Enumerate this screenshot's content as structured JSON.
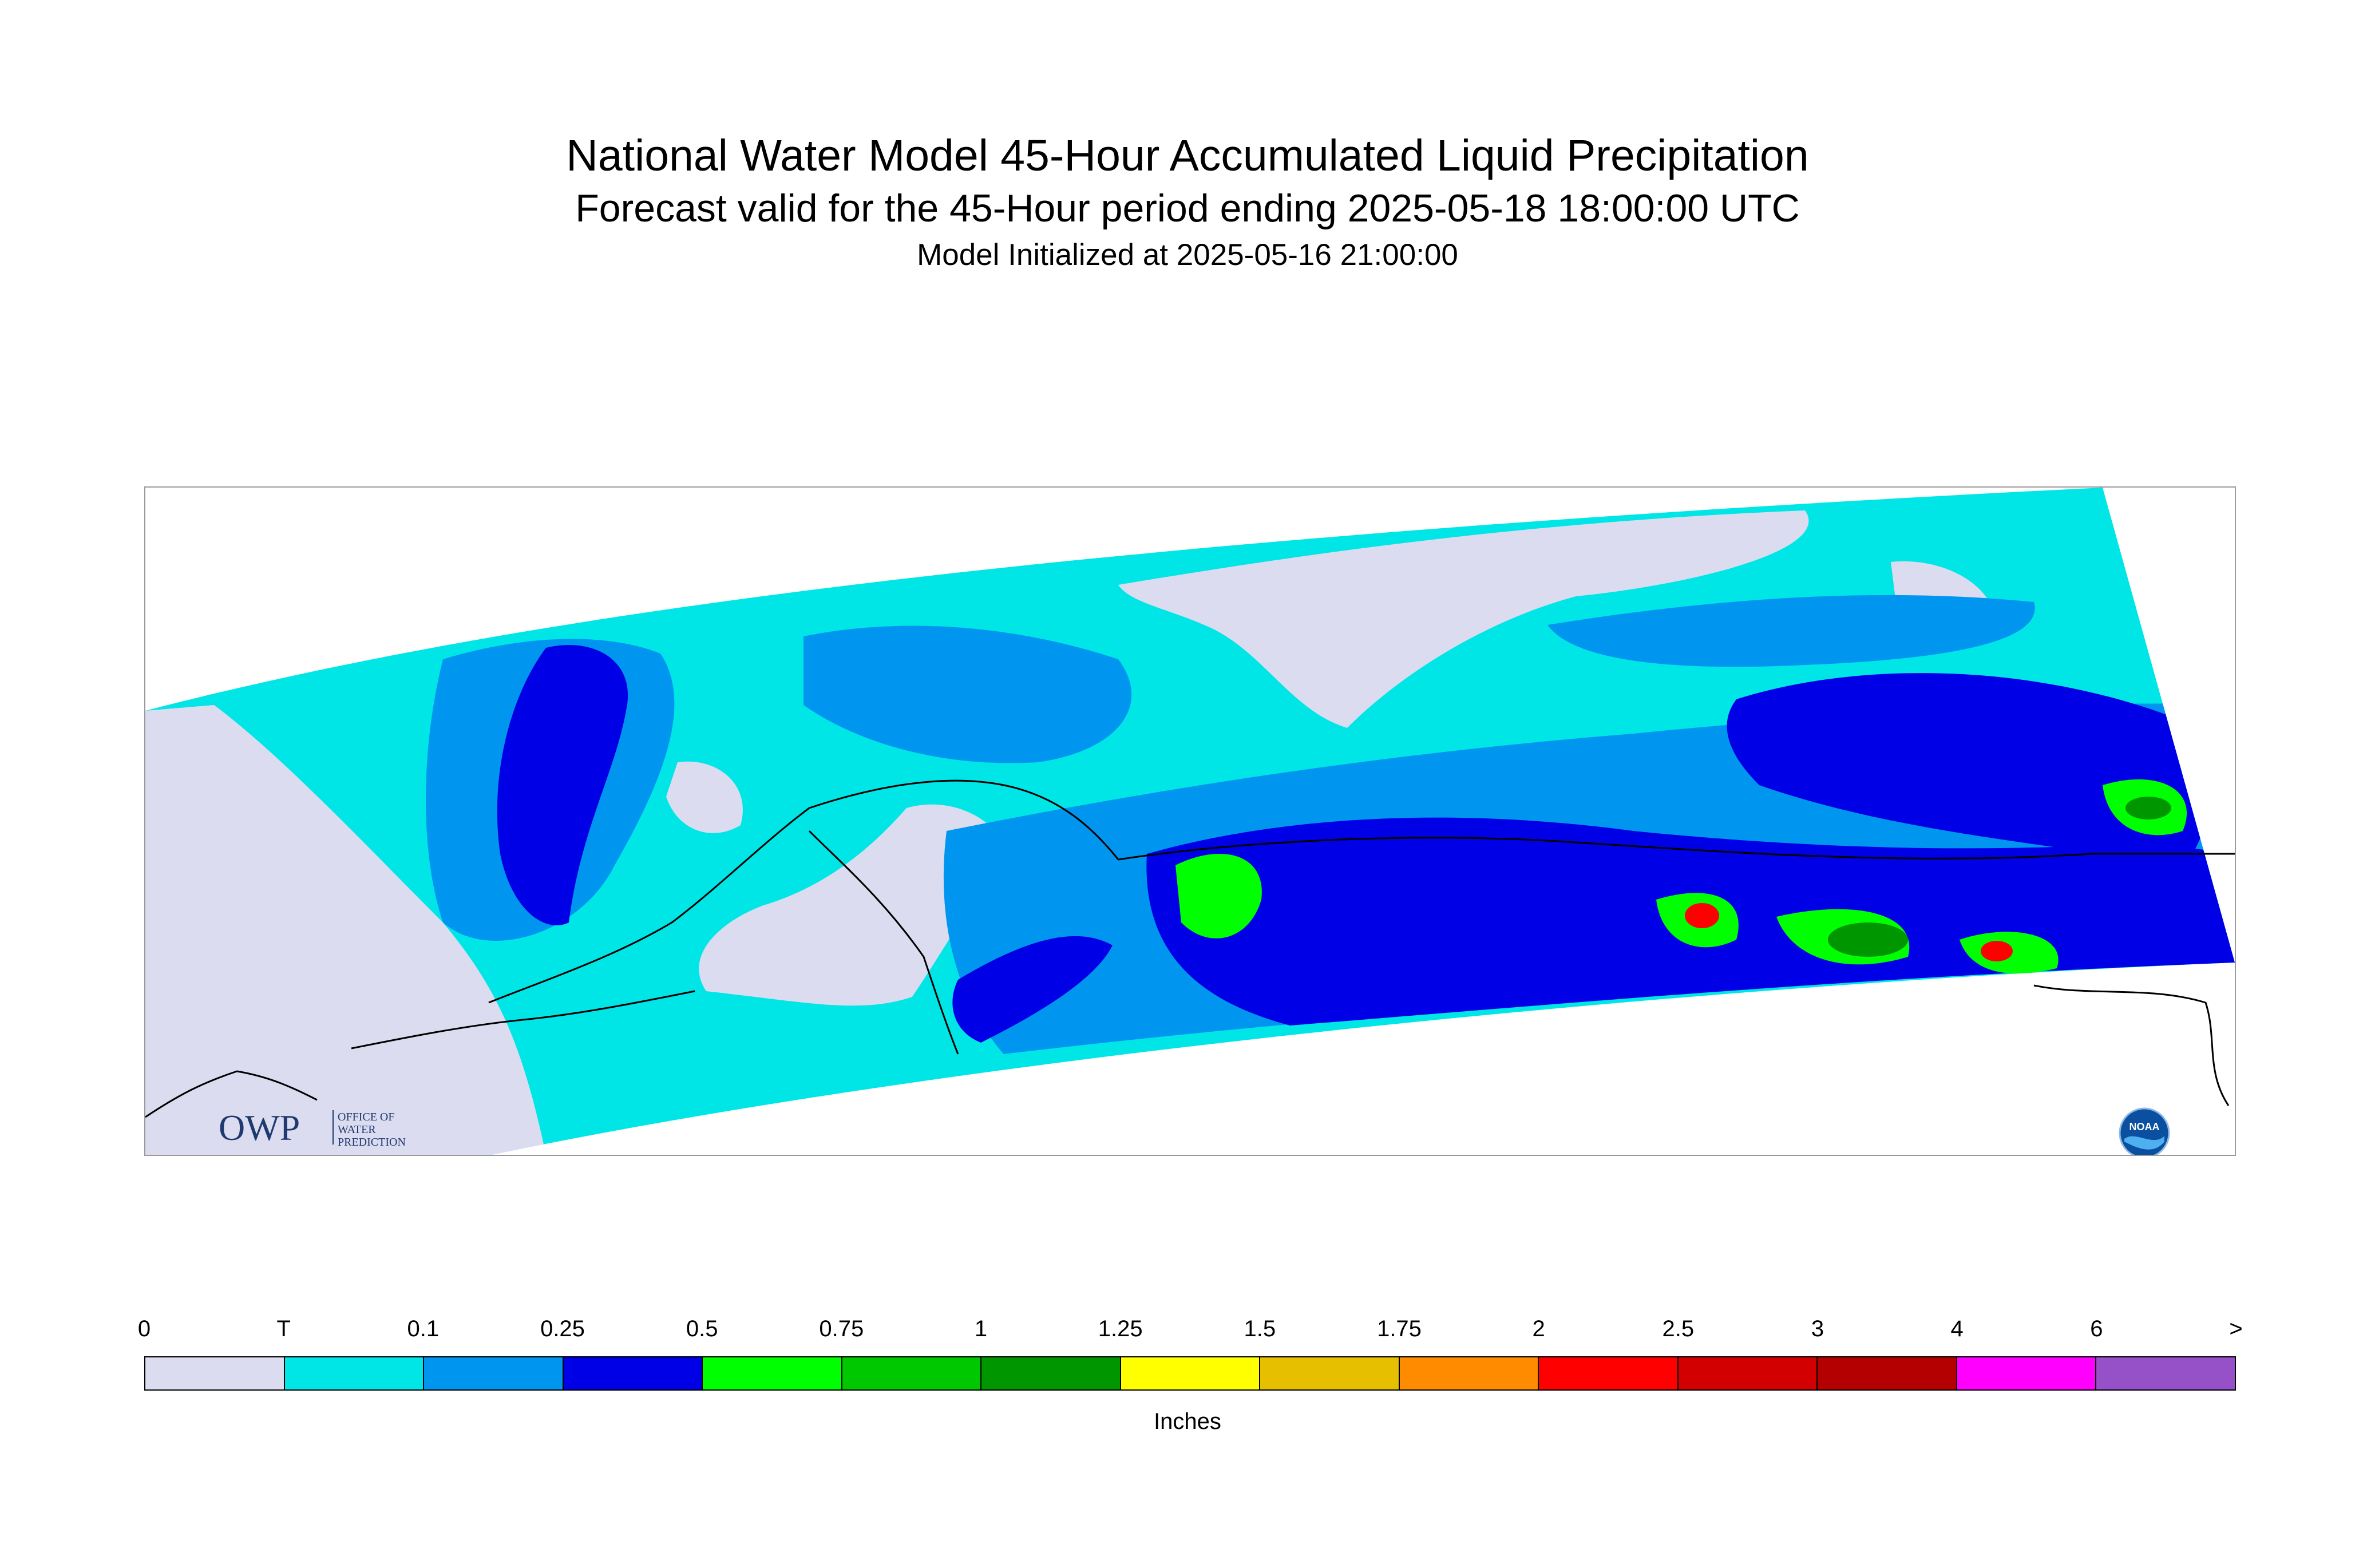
{
  "header": {
    "title": "National Water Model 45-Hour Accumulated Liquid Precipitation",
    "subtitle": "Forecast valid for the 45-Hour period ending 2025-05-18 18:00:00 UTC",
    "initialized": "Model Initialized at 2025-05-16 21:00:00"
  },
  "logos": {
    "owp": {
      "mark": "OWP",
      "line1": "OFFICE OF",
      "line2": "WATER",
      "line3": "PREDICTION"
    },
    "noaa": {
      "mark": "NOAA"
    }
  },
  "legend": {
    "unit": "Inches",
    "ticks": [
      "0",
      "T",
      "0.1",
      "0.25",
      "0.5",
      "0.75",
      "1",
      "1.25",
      "1.5",
      "1.75",
      "2",
      "2.5",
      "3",
      "4",
      "6",
      ">"
    ],
    "colors": [
      "#dcdcf0",
      "#00e6e6",
      "#0096f0",
      "#0000e6",
      "#00ff00",
      "#00c800",
      "#009600",
      "#ffff00",
      "#e6c000",
      "#ff8c00",
      "#ff0000",
      "#d20000",
      "#b40000",
      "#ff00ff",
      "#9650c8"
    ]
  },
  "map_colors": {
    "none": "#dcdcf0",
    "trace": "#00e6e6",
    "light": "#0096f0",
    "moderate": "#0000e6",
    "heavy": "#00ff00",
    "heavier": "#00c800",
    "heaviest": "#009600",
    "extreme": "#ff8c00",
    "peak": "#ff0000",
    "outline": "#000000"
  }
}
